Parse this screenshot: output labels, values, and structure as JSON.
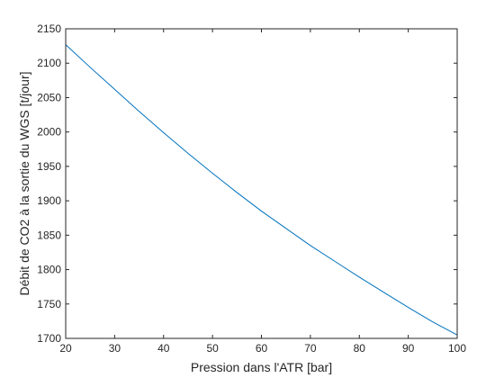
{
  "chart_data": {
    "type": "line",
    "title": "",
    "xlabel": "Pression dans l'ATR [bar]",
    "ylabel": "Débit de CO2 à la sortie du WGS [t/jour]",
    "xlim": [
      20,
      100
    ],
    "ylim": [
      1700,
      2150
    ],
    "xticks": [
      20,
      30,
      40,
      50,
      60,
      70,
      80,
      90,
      100
    ],
    "yticks": [
      1700,
      1750,
      1800,
      1850,
      1900,
      1950,
      2000,
      2050,
      2100,
      2150
    ],
    "grid": false,
    "legend": "none",
    "series": [
      {
        "color": "#0072BD",
        "x": [
          20,
          25,
          30,
          35,
          40,
          45,
          50,
          55,
          60,
          65,
          70,
          75,
          80,
          85,
          90,
          95,
          100
        ],
        "y": [
          2127,
          2094,
          2062,
          2030,
          1999,
          1969,
          1940,
          1912,
          1885,
          1860,
          1835,
          1812,
          1789,
          1767,
          1745,
          1724,
          1705
        ]
      }
    ]
  }
}
